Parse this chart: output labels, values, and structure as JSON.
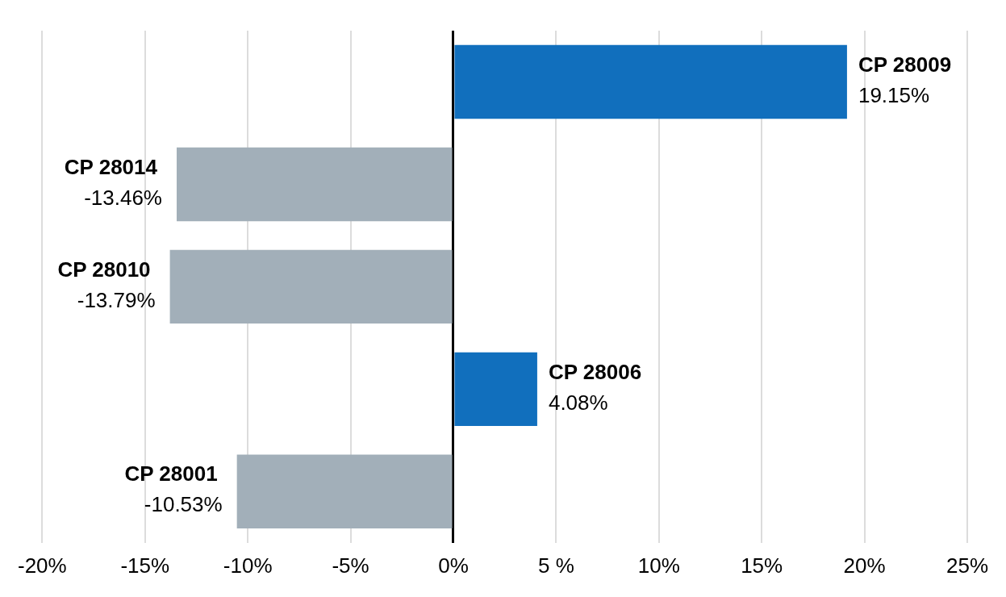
{
  "chart_data": {
    "type": "bar",
    "orientation": "horizontal",
    "categories": [
      "CP 28009",
      "CP 28014",
      "CP 28010",
      "CP 28006",
      "CP 28001"
    ],
    "values": [
      19.15,
      -13.46,
      -13.79,
      4.08,
      -10.53
    ],
    "colors": [
      "#116fbd",
      "#a2afb9",
      "#a2afb9",
      "#116fbd",
      "#a2afb9"
    ],
    "value_labels": [
      "19.15%",
      "-13.46%",
      "-13.79%",
      "4.08%",
      "-10.53%"
    ],
    "xlim": [
      -20,
      25
    ],
    "xticks": [
      {
        "value": -20,
        "label": "-20%"
      },
      {
        "value": -15,
        "label": "-15%"
      },
      {
        "value": -10,
        "label": "-10%"
      },
      {
        "value": -5,
        "label": "-5%"
      },
      {
        "value": 0,
        "label": "0%"
      },
      {
        "value": 5,
        "label": "5 %"
      },
      {
        "value": 10,
        "label": "10%"
      },
      {
        "value": 15,
        "label": "15%"
      },
      {
        "value": 20,
        "label": "20%"
      },
      {
        "value": 25,
        "label": "25%"
      }
    ],
    "grid": "x",
    "legend": false
  }
}
